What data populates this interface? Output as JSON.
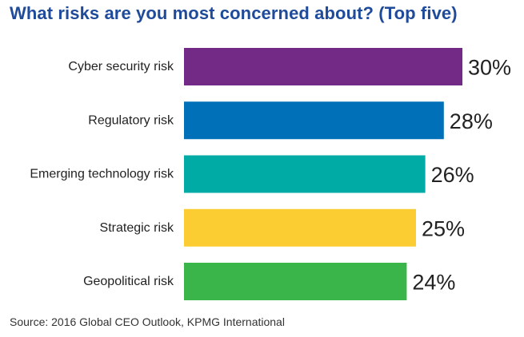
{
  "colors": {
    "title": "#1f4b9a",
    "category_label": "#222222",
    "value_label": "#222222",
    "source": "#333333"
  },
  "source": "Source: 2016 Global CEO Outlook, KPMG International",
  "chart_data": {
    "type": "bar",
    "orientation": "horizontal",
    "title": "What risks are you most concerned about? (Top five)",
    "xlabel": "",
    "ylabel": "",
    "xlim": [
      0,
      30
    ],
    "grid": false,
    "legend": "none",
    "categories": [
      "Cyber security risk",
      "Regulatory risk",
      "Emerging technology risk",
      "Strategic risk",
      "Geopolitical risk"
    ],
    "values": [
      30,
      28,
      26,
      25,
      24
    ],
    "value_labels": [
      "30%",
      "28%",
      "26%",
      "25%",
      "24%"
    ],
    "bar_colors": [
      "#722a86",
      "#0070b8",
      "#00aba5",
      "#fccd33",
      "#3ab54a"
    ]
  }
}
